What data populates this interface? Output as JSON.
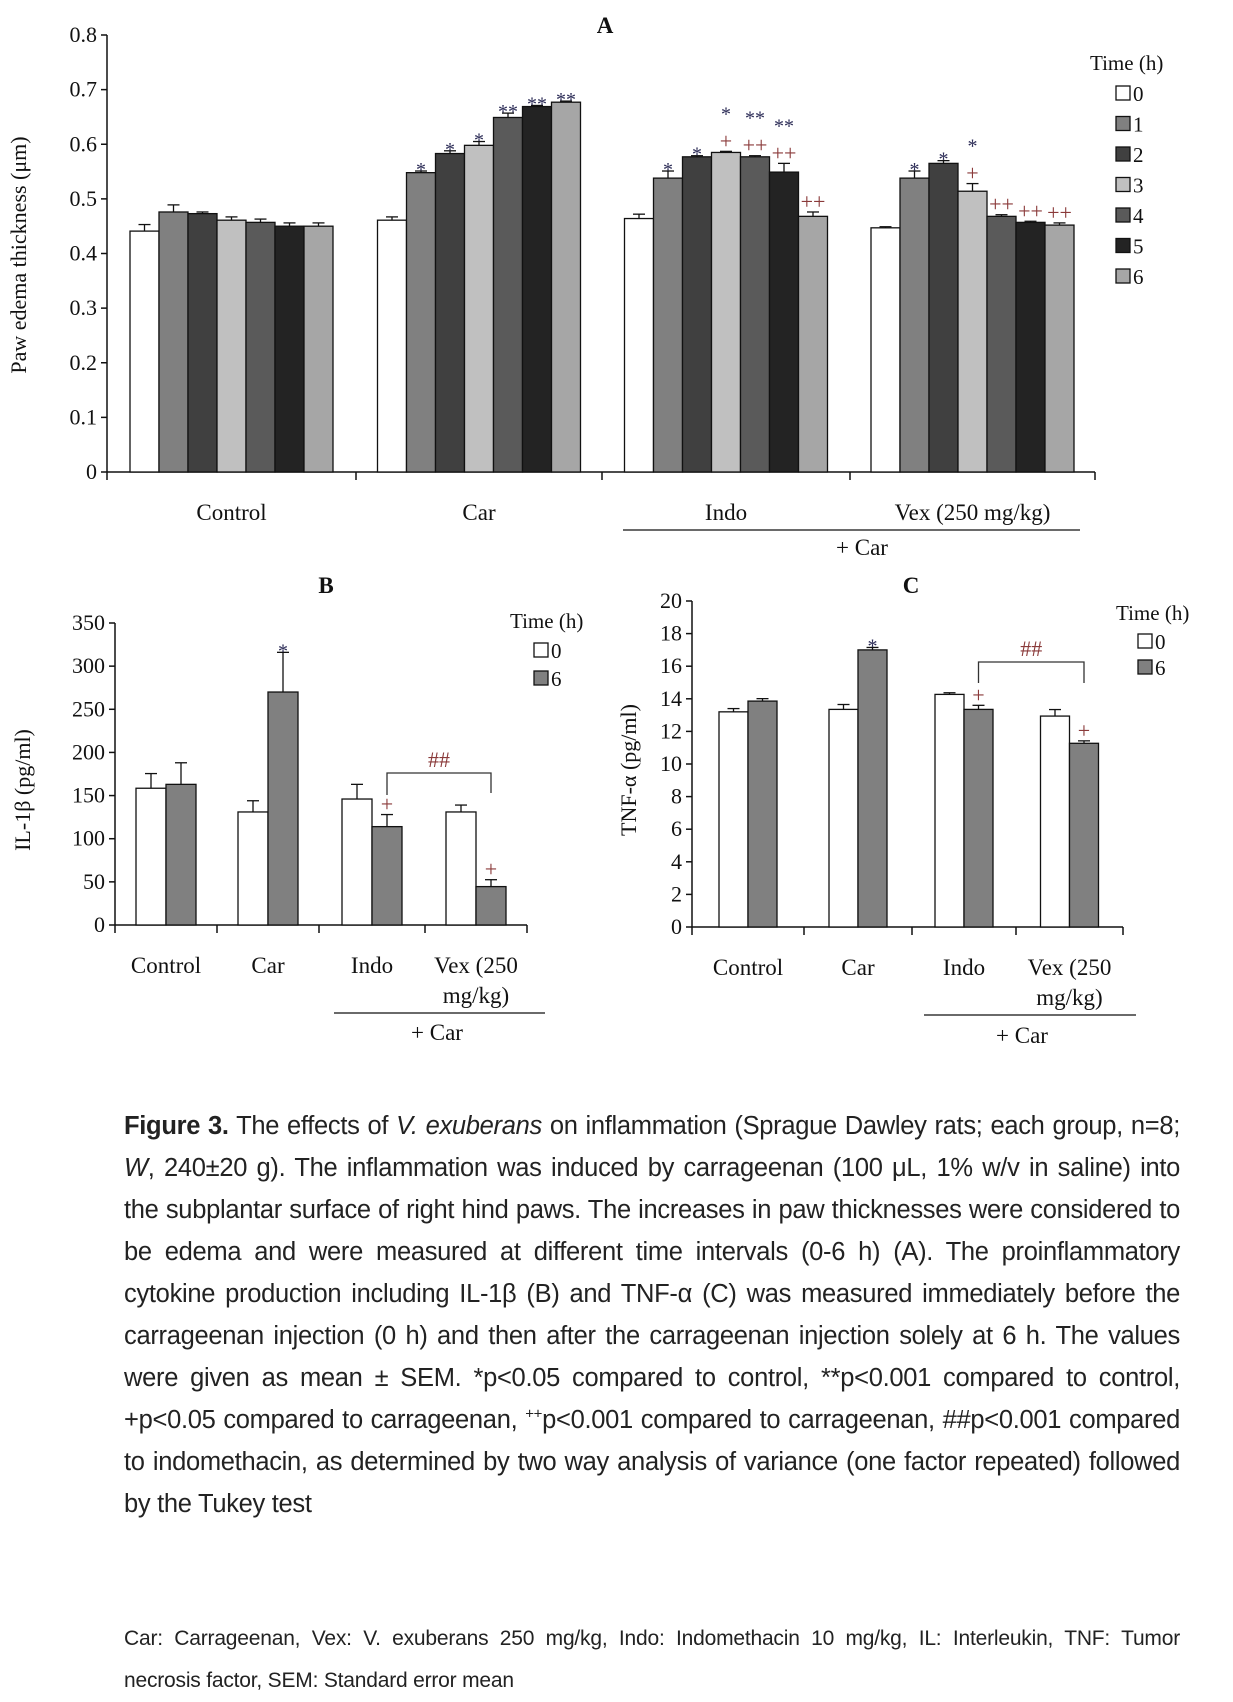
{
  "chart_data": [
    {
      "panel": "A",
      "type": "bar",
      "title": "A",
      "ylabel": "Paw edema thickness (μm)",
      "ylim": [
        0,
        0.8
      ],
      "yticks": [
        "0",
        "0.1",
        "0.2",
        "0.3",
        "0.4",
        "0.5",
        "0.6",
        "0.7",
        "0.8"
      ],
      "categories": [
        [
          "Control"
        ],
        [
          "Car"
        ],
        [
          "Indo"
        ],
        [
          "Vex (250 mg/kg)"
        ]
      ],
      "group_label": "+ Car",
      "legend_title": "Time (h)",
      "legend_placement": "right",
      "series": [
        {
          "name": "0",
          "color": "#ffffff",
          "values": [
            0.441,
            0.461,
            0.464,
            0.447
          ],
          "errors": [
            0.012,
            0.006,
            0.008,
            0.002
          ]
        },
        {
          "name": "1",
          "color": "#808080",
          "values": [
            0.476,
            0.548,
            0.538,
            0.538
          ],
          "errors": [
            0.013,
            0.003,
            0.013,
            0.013
          ]
        },
        {
          "name": "2",
          "color": "#404040",
          "values": [
            0.473,
            0.583,
            0.577,
            0.565
          ],
          "errors": [
            0.003,
            0.005,
            0.002,
            0.005
          ]
        },
        {
          "name": "3",
          "color": "#c0c0c0",
          "values": [
            0.461,
            0.598,
            0.585,
            0.514
          ],
          "errors": [
            0.006,
            0.007,
            0.002,
            0.014
          ]
        },
        {
          "name": "4",
          "color": "#5a5a5a",
          "values": [
            0.457,
            0.649,
            0.577,
            0.468
          ],
          "errors": [
            0.006,
            0.008,
            0.002,
            0.003
          ]
        },
        {
          "name": "5",
          "color": "#232323",
          "values": [
            0.45,
            0.669,
            0.549,
            0.457
          ],
          "errors": [
            0.006,
            0.002,
            0.016,
            0.002
          ]
        },
        {
          "name": "6",
          "color": "#a6a6a6",
          "values": [
            0.45,
            0.677,
            0.468,
            0.452
          ],
          "errors": [
            0.006,
            0.002,
            0.008,
            0.004
          ]
        }
      ],
      "annotations": [
        {
          "category": 1,
          "series": 1,
          "marks": [
            "*"
          ]
        },
        {
          "category": 1,
          "series": 2,
          "marks": [
            "*"
          ]
        },
        {
          "category": 1,
          "series": 3,
          "marks": [
            "*"
          ]
        },
        {
          "category": 1,
          "series": 4,
          "marks": [
            "**"
          ]
        },
        {
          "category": 1,
          "series": 5,
          "marks": [
            "**"
          ]
        },
        {
          "category": 1,
          "series": 6,
          "marks": [
            "**"
          ]
        },
        {
          "category": 2,
          "series": 1,
          "marks": [
            "*"
          ]
        },
        {
          "category": 2,
          "series": 2,
          "marks": [
            "*"
          ]
        },
        {
          "category": 2,
          "series": 3,
          "marks": [
            "+",
            "*"
          ]
        },
        {
          "category": 2,
          "series": 4,
          "marks": [
            "++",
            "**"
          ]
        },
        {
          "category": 2,
          "series": 5,
          "marks": [
            "++",
            "**"
          ]
        },
        {
          "category": 2,
          "series": 6,
          "marks": [
            "++"
          ]
        },
        {
          "category": 3,
          "series": 1,
          "marks": [
            "*"
          ]
        },
        {
          "category": 3,
          "series": 2,
          "marks": [
            "*"
          ]
        },
        {
          "category": 3,
          "series": 3,
          "marks": [
            "+",
            "*"
          ]
        },
        {
          "category": 3,
          "series": 4,
          "marks": [
            "++"
          ]
        },
        {
          "category": 3,
          "series": 5,
          "marks": [
            "++"
          ]
        },
        {
          "category": 3,
          "series": 6,
          "marks": [
            "++"
          ]
        }
      ]
    },
    {
      "panel": "B",
      "type": "bar",
      "title": "B",
      "ylabel": "IL-1β (pg/ml)",
      "ylim": [
        0,
        350
      ],
      "yticks": [
        "0",
        "50",
        "100",
        "150",
        "200",
        "250",
        "300",
        "350"
      ],
      "categories": [
        [
          "Control"
        ],
        [
          "Car"
        ],
        [
          "Indo"
        ],
        [
          "Vex (250",
          "mg/kg)"
        ]
      ],
      "group_label": "+ Car",
      "legend_title": "Time (h)",
      "legend_placement": "top-right",
      "series": [
        {
          "name": "0",
          "color": "#ffffff",
          "values": [
            158.5,
            131,
            146,
            131
          ],
          "errors": [
            17,
            13,
            17,
            8
          ]
        },
        {
          "name": "6",
          "color": "#808080",
          "values": [
            163,
            270,
            114,
            44.5
          ],
          "errors": [
            25,
            46,
            14,
            8
          ]
        }
      ],
      "annotations": [
        {
          "category": 1,
          "series": 1,
          "marks": [
            "*"
          ]
        },
        {
          "category": 2,
          "series": 1,
          "marks": [
            "+"
          ]
        },
        {
          "category": 3,
          "series": 1,
          "marks": [
            "+"
          ]
        }
      ],
      "bracket": {
        "from_category": 2,
        "to_category": 3,
        "series": 1,
        "label": "##"
      }
    },
    {
      "panel": "C",
      "type": "bar",
      "title": "C",
      "ylabel": "TNF-α (pg/ml)",
      "ylim": [
        0,
        20
      ],
      "yticks": [
        "0",
        "2",
        "4",
        "6",
        "8",
        "10",
        "12",
        "14",
        "16",
        "18",
        "20"
      ],
      "categories": [
        [
          "Control"
        ],
        [
          "Car"
        ],
        [
          "Indo"
        ],
        [
          "Vex (250",
          "mg/kg)"
        ]
      ],
      "group_label": "+ Car",
      "legend_title": "Time (h)",
      "legend_placement": "top-right",
      "series": [
        {
          "name": "0",
          "color": "#ffffff",
          "values": [
            13.2,
            13.35,
            14.27,
            12.94
          ],
          "errors": [
            0.2,
            0.3,
            0.1,
            0.4
          ]
        },
        {
          "name": "6",
          "color": "#808080",
          "values": [
            13.86,
            17.0,
            13.35,
            11.27
          ],
          "errors": [
            0.15,
            0.15,
            0.25,
            0.15
          ]
        }
      ],
      "annotations": [
        {
          "category": 1,
          "series": 1,
          "marks": [
            "*"
          ]
        },
        {
          "category": 2,
          "series": 1,
          "marks": [
            "+"
          ]
        },
        {
          "category": 3,
          "series": 1,
          "marks": [
            "+"
          ]
        }
      ],
      "bracket": {
        "from_category": 2,
        "to_category": 3,
        "series": 1,
        "label": "##"
      }
    }
  ],
  "caption": {
    "label": "Figure 3.",
    "t1": " The effects of ",
    "i1": "V. exuberans",
    "t2": " on inflammation (Sprague Dawley rats; each group, n=8; ",
    "i2": "W",
    "t3": ", 240±20 g). The inflammation was induced by carrageenan (100 μL, 1% w/v in saline) into the subplantar surface of right hind paws. The increases in paw thicknesses were considered to be edema and were measured at different time intervals (0-6 h) (A). The proinflammatory cytokine production including IL-1β (B) and TNF-α (C) was measured immediately before the carrageenan injection (0 h) and then after the carrageenan injection solely at 6 h. The values were given as mean ± SEM. *p<0.05 compared to control, **p<0.001 compared to control, +p<0.05 compared to carrageenan, ",
    "sup": "++",
    "t4": "p<0.001 compared to carrageenan, ##p<0.001 compared to indomethacin, as determined by two way analysis of variance (one factor repeated) followed by the Tukey test"
  },
  "footnote": "Car: Carrageenan, Vex: V. exuberans 250 mg/kg, Indo: Indomethacin 10 mg/kg, IL: Interleukin, TNF: Tumor necrosis factor, SEM: Standard error mean"
}
